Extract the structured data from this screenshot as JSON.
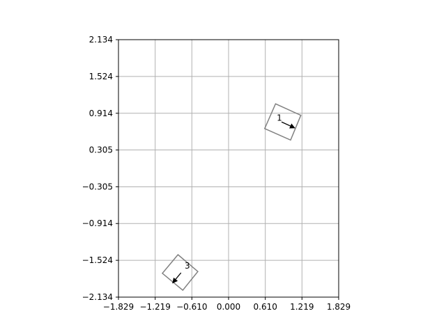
{
  "chart_data": {
    "type": "scatter",
    "title": "",
    "xlabel": "",
    "ylabel": "",
    "xlim": [
      -1.829,
      1.829
    ],
    "ylim": [
      -2.134,
      2.134
    ],
    "xticks": [
      -1.829,
      -1.219,
      -0.61,
      0.0,
      0.61,
      1.219,
      1.829
    ],
    "yticks": [
      -2.134,
      -1.524,
      -0.914,
      -0.305,
      0.305,
      0.914,
      1.524,
      2.134
    ],
    "xtick_labels": [
      "−1.829",
      "−1.219",
      "−0.610",
      "0.000",
      "0.610",
      "1.219",
      "1.829"
    ],
    "ytick_labels": [
      "−2.134",
      "−1.524",
      "−0.914",
      "−0.305",
      "0.305",
      "0.914",
      "1.524",
      "2.134"
    ],
    "grid": true,
    "colors": {
      "grid": "#b0b0b0",
      "box": "#808080",
      "axes": "#000000",
      "arrow": "#000000"
    },
    "robots": [
      {
        "label": "1",
        "x": 0.945,
        "y": 0.75,
        "heading_deg": -20,
        "box_corners": [
          [
            0.78,
            1.07
          ],
          [
            1.2,
            0.88
          ],
          [
            1.03,
            0.47
          ],
          [
            0.6,
            0.66
          ]
        ],
        "arrow_from": [
          0.88,
          0.77
        ],
        "arrow_to": [
          1.1,
          0.67
        ],
        "label_pos": [
          0.8,
          0.79
        ]
      },
      {
        "label": "3",
        "x": -0.82,
        "y": -1.75,
        "heading_deg": -125,
        "box_corners": [
          [
            -0.84,
            -1.43
          ],
          [
            -0.51,
            -1.71
          ],
          [
            -0.76,
            -2.02
          ],
          [
            -1.1,
            -1.74
          ]
        ],
        "arrow_from": [
          -0.79,
          -1.73
        ],
        "arrow_to": [
          -0.93,
          -1.9
        ],
        "label_pos": [
          -0.73,
          -1.66
        ]
      }
    ]
  }
}
